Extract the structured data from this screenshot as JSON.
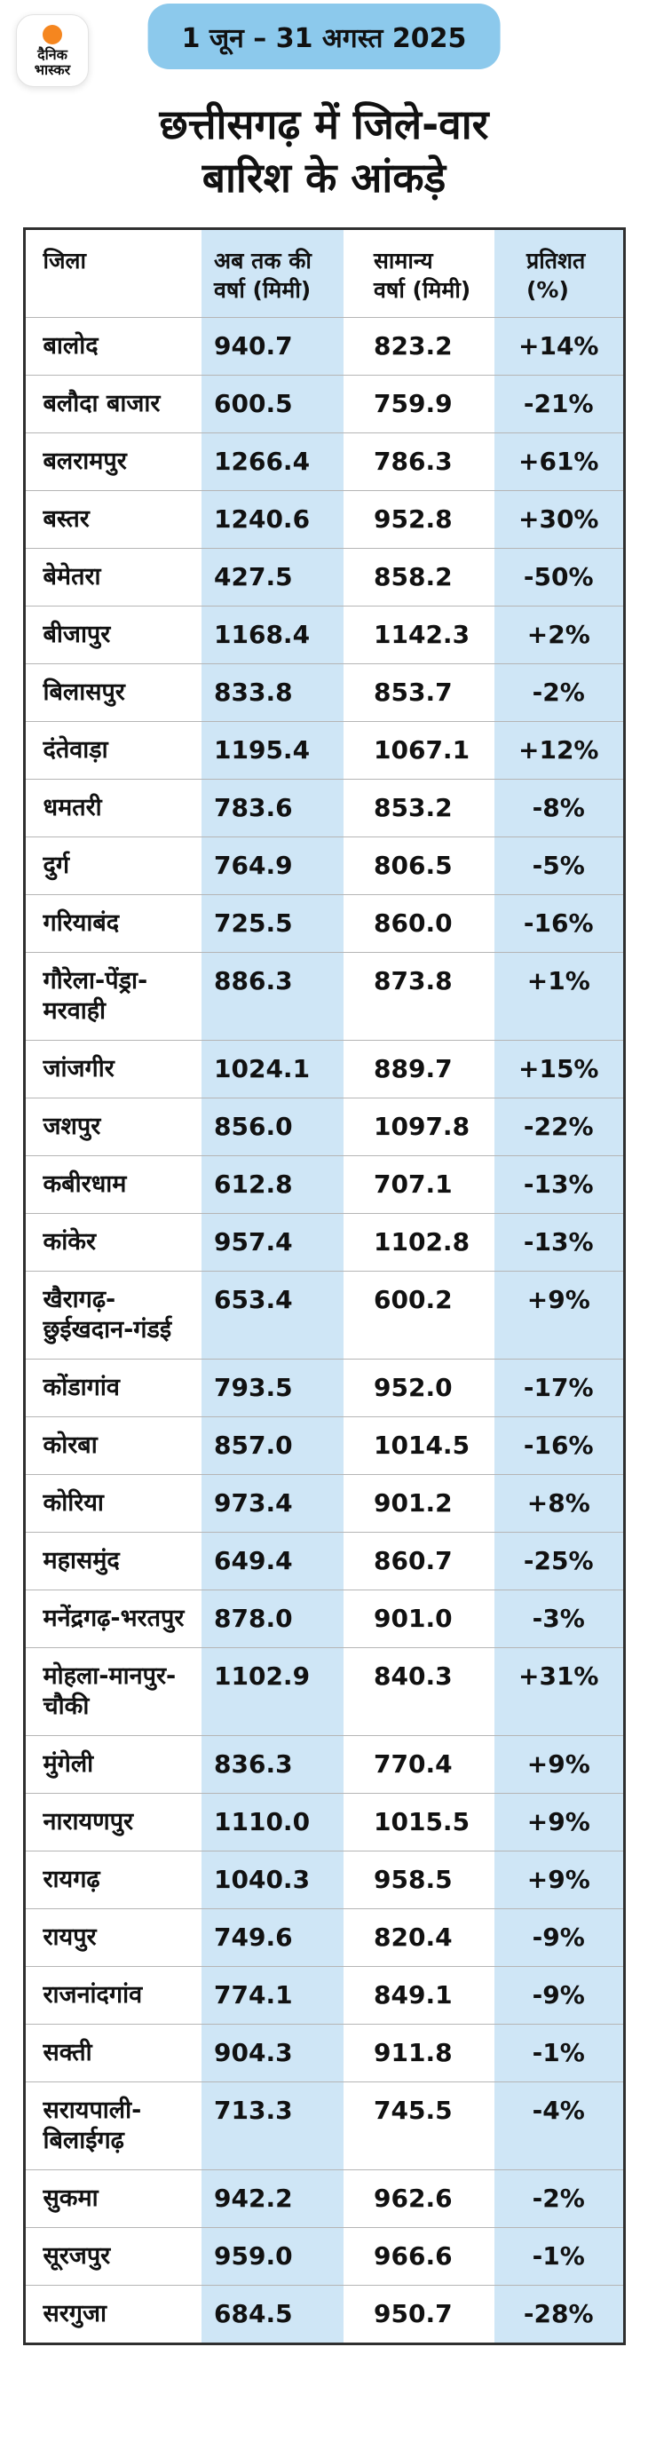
{
  "header": {
    "logo_line1": "दैनिक",
    "logo_line2": "भास्कर",
    "date_range": "1 जून – 31 अगस्त 2025",
    "title_line1": "छत्तीसगढ़ में जिले-वार",
    "title_line2": "बारिश के आंकड़े"
  },
  "colors": {
    "badge_blue": "#8cc9ec",
    "column_blue": "#cfe6f6",
    "logo_orange": "#f5861f",
    "text_dark": "#111111",
    "table_border": "#2f2f2f",
    "row_separator": "#b5b5b5"
  },
  "table": {
    "headers": [
      {
        "line1": "जिला",
        "line2": ""
      },
      {
        "line1": "अब तक की",
        "line2": "वर्षा (मिमी)"
      },
      {
        "line1": "सामान्य",
        "line2": "वर्षा (मिमी)"
      },
      {
        "line1": "प्रतिशत",
        "line2": "(%)"
      }
    ]
  },
  "chart_data": {
    "type": "table",
    "title": "छत्तीसगढ़ में जिले-वार बारिश के आंकड़े",
    "subtitle": "1 जून – 31 अगस्त 2025",
    "columns": [
      "जिला",
      "अब तक की वर्षा (मिमी)",
      "सामान्य वर्षा (मिमी)",
      "प्रतिशत (%)"
    ],
    "rows": [
      [
        "बालोद",
        "940.7",
        "823.2",
        "+14%"
      ],
      [
        "बलौदा बाजार",
        "600.5",
        "759.9",
        "-21%"
      ],
      [
        "बलरामपुर",
        "1266.4",
        "786.3",
        "+61%"
      ],
      [
        "बस्तर",
        "1240.6",
        "952.8",
        "+30%"
      ],
      [
        "बेमेतरा",
        "427.5",
        "858.2",
        "-50%"
      ],
      [
        "बीजापुर",
        "1168.4",
        "1142.3",
        "+2%"
      ],
      [
        "बिलासपुर",
        "833.8",
        "853.7",
        "-2%"
      ],
      [
        "दंतेवाड़ा",
        "1195.4",
        "1067.1",
        "+12%"
      ],
      [
        "धमतरी",
        "783.6",
        "853.2",
        "-8%"
      ],
      [
        "दुर्ग",
        "764.9",
        "806.5",
        "-5%"
      ],
      [
        "गरियाबंद",
        "725.5",
        "860.0",
        "-16%"
      ],
      [
        "गौरेला-पेंड्रा-मरवाही",
        "886.3",
        "873.8",
        "+1%"
      ],
      [
        "जांजगीर",
        "1024.1",
        "889.7",
        "+15%"
      ],
      [
        "जशपुर",
        "856.0",
        "1097.8",
        "-22%"
      ],
      [
        "कबीरधाम",
        "612.8",
        "707.1",
        "-13%"
      ],
      [
        "कांकेर",
        "957.4",
        "1102.8",
        "-13%"
      ],
      [
        "खैरागढ़-छुईखदान-गंडई",
        "653.4",
        "600.2",
        "+9%"
      ],
      [
        "कोंडागांव",
        "793.5",
        "952.0",
        "-17%"
      ],
      [
        "कोरबा",
        "857.0",
        "1014.5",
        "-16%"
      ],
      [
        "कोरिया",
        "973.4",
        "901.2",
        "+8%"
      ],
      [
        "महासमुंद",
        "649.4",
        "860.7",
        "-25%"
      ],
      [
        "मनेंद्रगढ़-भरतपुर",
        "878.0",
        "901.0",
        "-3%"
      ],
      [
        "मोहला-मानपुर-चौकी",
        "1102.9",
        "840.3",
        "+31%"
      ],
      [
        "मुंगेली",
        "836.3",
        "770.4",
        "+9%"
      ],
      [
        "नारायणपुर",
        "1110.0",
        "1015.5",
        "+9%"
      ],
      [
        "रायगढ़",
        "1040.3",
        "958.5",
        "+9%"
      ],
      [
        "रायपुर",
        "749.6",
        "820.4",
        "-9%"
      ],
      [
        "राजनांदगांव",
        "774.1",
        "849.1",
        "-9%"
      ],
      [
        "सक्ती",
        "904.3",
        "911.8",
        "-1%"
      ],
      [
        "सरायपाली-बिलाईगढ़",
        "713.3",
        "745.5",
        "-4%"
      ],
      [
        "सुकमा",
        "942.2",
        "962.6",
        "-2%"
      ],
      [
        "सूरजपुर",
        "959.0",
        "966.6",
        "-1%"
      ],
      [
        "सरगुजा",
        "684.5",
        "950.7",
        "-28%"
      ]
    ]
  }
}
